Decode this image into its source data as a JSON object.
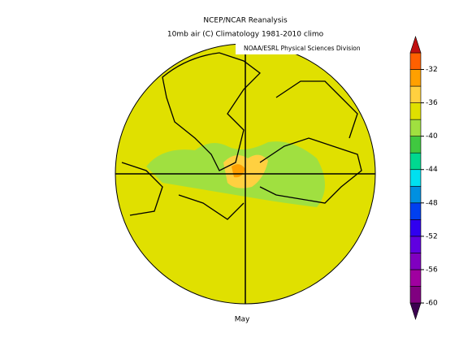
{
  "header": {
    "title": [
      "NCEP/NCAR Reanalysis",
      "10mb air (C) Climatology 1981-2010 climo"
    ],
    "credit": "NOAA/ESRL Physical Sciences Division"
  },
  "map": {
    "label": "May",
    "fill": "#e0e000"
  },
  "colorbar": {
    "vlim": [
      -60,
      -30
    ],
    "ticks": [
      -32,
      -36,
      -40,
      -44,
      -48,
      -52,
      -56,
      -60
    ],
    "colors": [
      "#3c0050",
      "#800080",
      "#a000a0",
      "#8000c0",
      "#6000e0",
      "#3000f0",
      "#0040f0",
      "#0090e0",
      "#00e0f0",
      "#00d890",
      "#40c840",
      "#a0e040",
      "#e0e000",
      "#ffd040",
      "#ffa000",
      "#ff6000",
      "#c01010"
    ]
  }
}
